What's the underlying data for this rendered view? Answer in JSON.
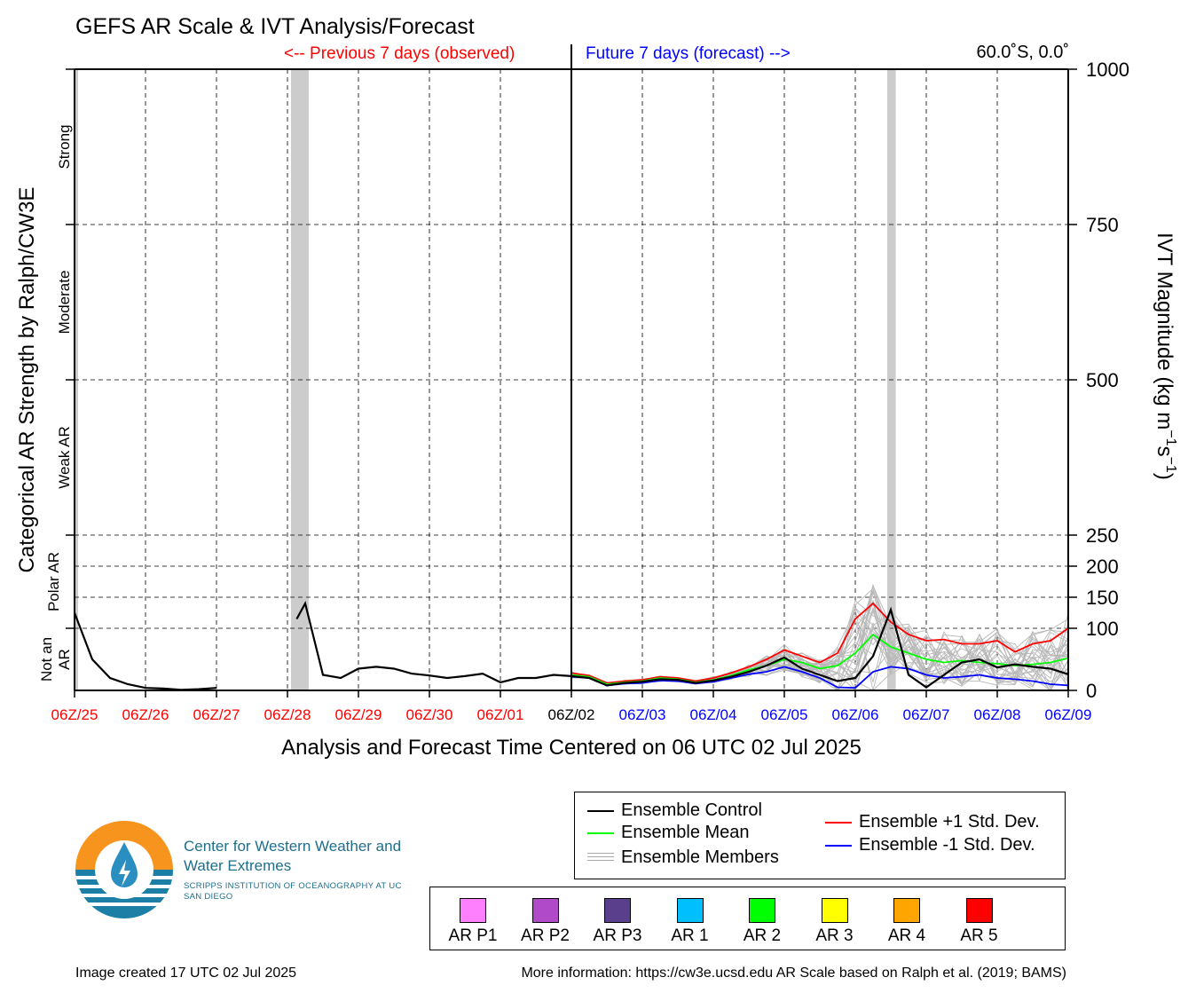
{
  "title": "GEFS AR Scale & IVT Analysis/Forecast",
  "prev_label": "<-- Previous 7 days (observed)",
  "future_label": "Future 7 days (forecast) -->",
  "location": "60.0˚S, 0.0˚",
  "chart_data": {
    "type": "line",
    "title": "GEFS AR Scale & IVT Analysis/Forecast",
    "xlabel": "Analysis and Forecast Time Centered on 06 UTC 02 Jul 2025",
    "ylabel_left": "Categorical AR Strength by Ralph/CW3E",
    "ylabel_right": "IVT Magnitude (kg m",
    "ylabel_right_units": [
      "−1",
      "s",
      "−1",
      ")"
    ],
    "xlim_days": [
      -7,
      7
    ],
    "ylim": [
      0,
      1000
    ],
    "y_ticks": [
      0,
      100,
      150,
      200,
      250,
      500,
      750,
      1000
    ],
    "y_tick_labels": [
      "0",
      "100",
      "150",
      "200",
      "250",
      "500",
      "750",
      "1000"
    ],
    "x_ticks": [
      -7,
      -6,
      -5,
      -4,
      -3,
      -2,
      -1,
      0,
      1,
      2,
      3,
      4,
      5,
      6,
      7
    ],
    "x_tick_labels": [
      "06Z/25",
      "06Z/26",
      "06Z/27",
      "06Z/28",
      "06Z/29",
      "06Z/30",
      "06Z/01",
      "06Z/02",
      "06Z/03",
      "06Z/04",
      "06Z/05",
      "06Z/06",
      "06Z/07",
      "06Z/08",
      "06Z/09"
    ],
    "x_tick_colors": [
      "#ff0000",
      "#ff0000",
      "#ff0000",
      "#ff0000",
      "#ff0000",
      "#ff0000",
      "#ff0000",
      "#000000",
      "#0000ff",
      "#0000ff",
      "#0000ff",
      "#0000ff",
      "#0000ff",
      "#0000ff",
      "#0000ff"
    ],
    "categories": [
      {
        "label": "Not an AR",
        "range": [
          0,
          100
        ]
      },
      {
        "label": "Polar AR",
        "range": [
          100,
          250
        ]
      },
      {
        "label": "Weak AR",
        "range": [
          250,
          500
        ]
      },
      {
        "label": "Moderate",
        "range": [
          500,
          750
        ]
      },
      {
        "label": "Strong",
        "range": [
          750,
          1000
        ]
      }
    ],
    "gray_bands_days": [
      [
        -7,
        -6.95
      ],
      [
        -3.95,
        -3.7
      ],
      [
        4.45,
        4.57
      ]
    ],
    "observed": [
      {
        "segment": [
          [
            -7.0,
            125
          ],
          [
            -6.75,
            50
          ],
          [
            -6.5,
            20
          ],
          [
            -6.25,
            10
          ],
          [
            -6.0,
            4
          ],
          [
            -5.75,
            3
          ],
          [
            -5.5,
            1
          ],
          [
            -5.25,
            2
          ],
          [
            -5.0,
            4
          ]
        ]
      },
      {
        "segment": [
          [
            -3.87,
            115
          ],
          [
            -3.75,
            140
          ],
          [
            -3.5,
            25
          ],
          [
            -3.25,
            20
          ],
          [
            -3.0,
            35
          ],
          [
            -2.75,
            38
          ],
          [
            -2.5,
            35
          ],
          [
            -2.25,
            27
          ],
          [
            -2.0,
            24
          ],
          [
            -1.75,
            20
          ],
          [
            -1.5,
            23
          ],
          [
            -1.25,
            27
          ],
          [
            -1.0,
            13
          ],
          [
            -0.75,
            20
          ],
          [
            -0.5,
            20
          ],
          [
            -0.25,
            25
          ],
          [
            0.0,
            23
          ]
        ]
      }
    ],
    "x": [
      0,
      0.25,
      0.5,
      0.75,
      1,
      1.25,
      1.5,
      1.75,
      2,
      2.25,
      2.5,
      2.75,
      3,
      3.25,
      3.5,
      3.75,
      4,
      4.25,
      4.5,
      4.75,
      5,
      5.25,
      5.5,
      5.75,
      6,
      6.25,
      6.5,
      6.75,
      7
    ],
    "series": [
      {
        "name": "Ensemble Control",
        "color": "#000000",
        "values": [
          23,
          20,
          8,
          12,
          14,
          18,
          17,
          12,
          16,
          22,
          30,
          40,
          53,
          35,
          25,
          15,
          20,
          55,
          130,
          25,
          5,
          25,
          45,
          50,
          37,
          42,
          38,
          35,
          26
        ]
      },
      {
        "name": "Ensemble Mean",
        "color": "#00ff00",
        "values": [
          25,
          22,
          10,
          13,
          15,
          20,
          18,
          13,
          17,
          24,
          33,
          40,
          50,
          45,
          35,
          40,
          60,
          90,
          70,
          60,
          50,
          45,
          48,
          45,
          43,
          40,
          42,
          45,
          52
        ]
      },
      {
        "name": "Ensemble +1 Std. Dev.",
        "color": "#ff0000",
        "values": [
          28,
          24,
          12,
          15,
          17,
          22,
          20,
          15,
          20,
          28,
          38,
          50,
          65,
          55,
          45,
          60,
          115,
          140,
          110,
          90,
          80,
          82,
          75,
          75,
          80,
          62,
          75,
          80,
          100
        ]
      },
      {
        "name": "Ensemble -1 Std. Dev.",
        "color": "#0000ff",
        "values": [
          22,
          20,
          8,
          11,
          12,
          16,
          15,
          11,
          14,
          20,
          26,
          30,
          38,
          30,
          20,
          5,
          4,
          30,
          38,
          35,
          25,
          20,
          22,
          25,
          20,
          18,
          15,
          10,
          8
        ]
      }
    ],
    "members_label": "Ensemble Members"
  },
  "legend": {
    "control": "Ensemble Control",
    "mean": "Ensemble Mean",
    "members": "Ensemble Members",
    "plus_std": "Ensemble +1 Std. Dev.",
    "minus_std": "Ensemble -1 Std. Dev."
  },
  "ar_scale": [
    {
      "label": "AR P1",
      "color": "#ff80ff"
    },
    {
      "label": "AR P2",
      "color": "#b04ac8"
    },
    {
      "label": "AR P3",
      "color": "#5a3f8c"
    },
    {
      "label": "AR 1",
      "color": "#00bfff"
    },
    {
      "label": "AR 2",
      "color": "#00ff00"
    },
    {
      "label": "AR 3",
      "color": "#ffff00"
    },
    {
      "label": "AR 4",
      "color": "#ffa500"
    },
    {
      "label": "AR 5",
      "color": "#ff0000"
    }
  ],
  "logo": {
    "name": "Center for Western Weather and Water Extremes",
    "subtitle": "SCRIPPS INSTITUTION OF OCEANOGRAPHY AT UC SAN DIEGO"
  },
  "footer": {
    "created": "Image created 17 UTC 02 Jul 2025",
    "more_info": "More information: https://cw3e.ucsd.edu AR Scale based on Ralph et al. (2019; BAMS)"
  }
}
